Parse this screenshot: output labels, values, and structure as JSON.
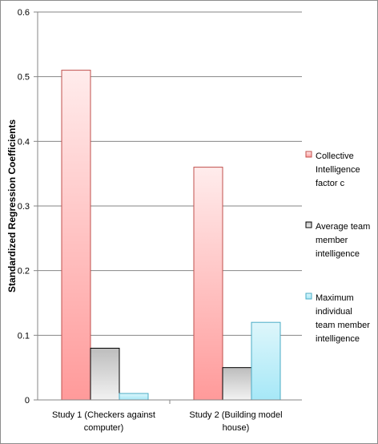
{
  "chart_data": {
    "type": "bar",
    "categories": [
      [
        "Study 1 (Checkers against",
        "computer)"
      ],
      [
        "Study 2 (Building model",
        "house)"
      ]
    ],
    "series": [
      {
        "name": [
          "Collective",
          "Intelligence",
          "factor c"
        ],
        "values": [
          0.51,
          0.36
        ],
        "color_top": "#ffecec",
        "color_bottom": "#ff9a9a",
        "stroke": "#c0504d"
      },
      {
        "name": [
          "Average team",
          "member",
          "intelligence"
        ],
        "values": [
          0.08,
          0.05
        ],
        "color_top": "#bdbdbd",
        "color_bottom": "#f2f2f2",
        "stroke": "#000000"
      },
      {
        "name": [
          "Maximum",
          "individual",
          "team member",
          "intelligence"
        ],
        "values": [
          0.01,
          0.12
        ],
        "color_top": "#def6fb",
        "color_bottom": "#a6e8f7",
        "stroke": "#4bacc6"
      }
    ],
    "yticks": [
      "0",
      "0.1",
      "0.2",
      "0.3",
      "0.4",
      "0.5",
      "0.6"
    ],
    "ylim": [
      0,
      0.6
    ],
    "ylabel": "Standardized Regression Coefficients",
    "xlabel": "",
    "title": "",
    "grid": true,
    "legend_position": "right"
  }
}
